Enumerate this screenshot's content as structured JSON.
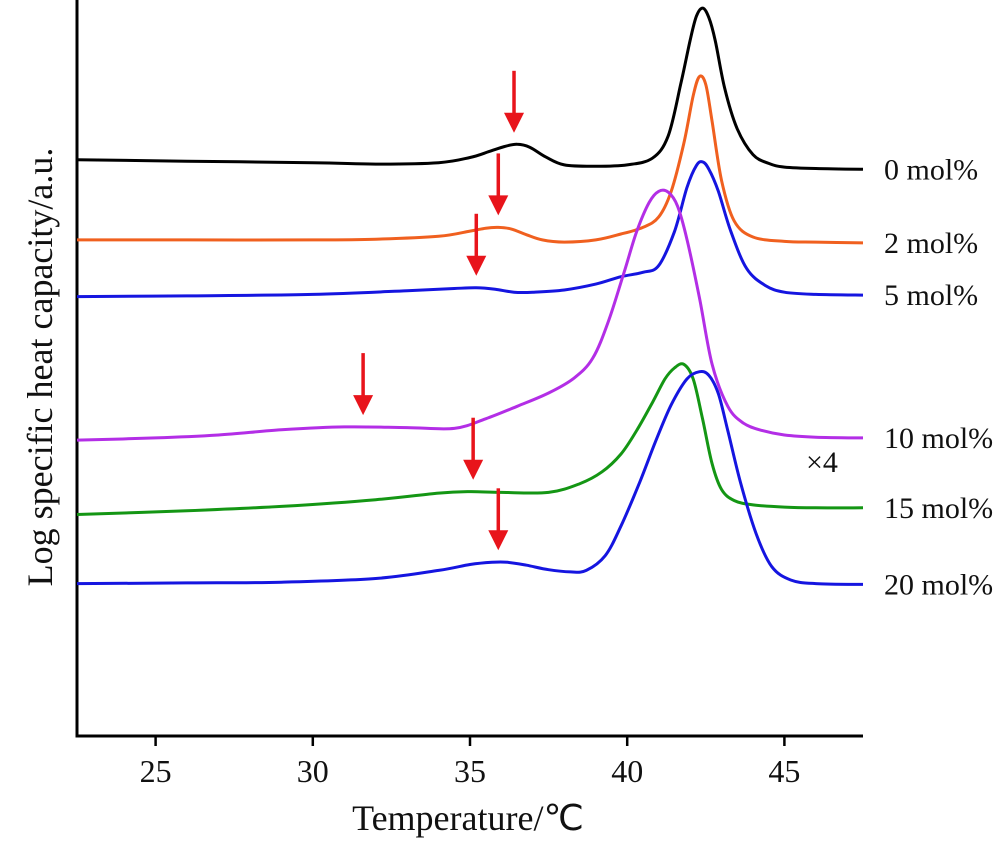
{
  "chart_data": {
    "type": "line",
    "xlabel": "Temperature/℃",
    "ylabel": "Log specific heat capacity/a.u.",
    "xlim": [
      22.5,
      47.5
    ],
    "ylim": [
      0,
      100
    ],
    "xticks": [
      25,
      30,
      35,
      40,
      45
    ],
    "xtick_labels": [
      "25",
      "30",
      "35",
      "40",
      "45"
    ],
    "yticks_shown": false,
    "grid": false,
    "legend": "none",
    "annotation": "×4",
    "series": [
      {
        "name": "0 mol%",
        "color": "#000000",
        "x": [
          22.5,
          26,
          30,
          32,
          34,
          35,
          35.6,
          36.1,
          36.5,
          36.9,
          37.4,
          38,
          39,
          40,
          40.8,
          41.3,
          41.7,
          42.0,
          42.2,
          42.4,
          42.6,
          42.8,
          43.1,
          43.5,
          44,
          44.5,
          45,
          46,
          47.5
        ],
        "y": [
          78.3,
          78.1,
          77.9,
          77.7,
          77.9,
          78.6,
          79.4,
          80.1,
          80.4,
          80.0,
          78.7,
          77.6,
          77.4,
          77.6,
          78.5,
          81.5,
          88.5,
          94.5,
          97.8,
          98.9,
          97.6,
          94.5,
          88.0,
          82.5,
          79.0,
          77.8,
          77.3,
          77.1,
          77.0
        ],
        "arrow_x": 36.4
      },
      {
        "name": "2 mol%",
        "color": "#f0601f",
        "x": [
          22.5,
          26,
          30,
          32,
          34,
          35,
          35.5,
          35.9,
          36.3,
          36.8,
          37.3,
          38,
          39,
          39.8,
          40.5,
          41.0,
          41.4,
          41.8,
          42.1,
          42.3,
          42.5,
          42.7,
          43.0,
          43.4,
          44,
          45,
          46,
          47.5
        ],
        "y": [
          67.4,
          67.4,
          67.4,
          67.5,
          67.9,
          68.6,
          69.0,
          69.1,
          68.9,
          68.1,
          67.4,
          67.1,
          67.4,
          68.2,
          69.1,
          70.5,
          74.0,
          80.5,
          87.0,
          89.6,
          88.5,
          83.5,
          75.5,
          70.0,
          67.8,
          67.2,
          67.1,
          67.0
        ],
        "arrow_x": 35.9
      },
      {
        "name": "5 mol%",
        "color": "#1515e0",
        "x": [
          22.5,
          26,
          30,
          33,
          34.5,
          35.2,
          35.8,
          36.4,
          37,
          38,
          39,
          39.8,
          40.5,
          41.0,
          41.5,
          41.9,
          42.2,
          42.4,
          42.6,
          42.9,
          43.3,
          43.8,
          44.4,
          45,
          46,
          47.5
        ],
        "y": [
          59.7,
          59.8,
          60.0,
          60.5,
          60.8,
          60.9,
          60.7,
          60.3,
          60.3,
          60.6,
          61.4,
          62.4,
          63.0,
          63.9,
          68.5,
          74.5,
          77.5,
          78.0,
          77.0,
          74.0,
          68.5,
          63.5,
          61.2,
          60.3,
          60.0,
          59.9
        ],
        "arrow_x": 35.2
      },
      {
        "name": "10 mol%",
        "color": "#b32ee6",
        "x": [
          22.5,
          25,
          27,
          29,
          31,
          33,
          34.5,
          35.5,
          36.5,
          37.5,
          38.3,
          38.9,
          39.4,
          39.9,
          40.3,
          40.7,
          41.0,
          41.3,
          41.6,
          41.9,
          42.3,
          42.7,
          43.2,
          43.7,
          44.3,
          45,
          46,
          47.5
        ],
        "y": [
          40.2,
          40.5,
          40.9,
          41.6,
          42.0,
          41.9,
          41.8,
          43.1,
          44.8,
          46.6,
          48.6,
          51.3,
          56.3,
          63.0,
          68.5,
          72.5,
          74.0,
          73.9,
          72.0,
          67.5,
          59.5,
          50.5,
          44.8,
          42.5,
          41.5,
          40.9,
          40.6,
          40.5
        ],
        "arrow_x": 31.6
      },
      {
        "name": "15 mol%",
        "color": "#149614",
        "x": [
          22.5,
          26,
          29,
          32,
          34,
          35,
          36,
          37.5,
          38.5,
          39.2,
          39.8,
          40.3,
          40.8,
          41.2,
          41.5,
          41.8,
          42.1,
          42.4,
          42.7,
          43.0,
          43.4,
          44,
          45,
          46,
          47.5
        ],
        "y": [
          30.1,
          30.6,
          31.2,
          32.1,
          33.0,
          33.2,
          33.1,
          33.1,
          34.3,
          35.9,
          38.3,
          41.5,
          45.3,
          48.5,
          50.0,
          50.5,
          48.5,
          43.0,
          37.0,
          33.5,
          32.0,
          31.4,
          31.1,
          31.0,
          31.0
        ],
        "arrow_x": 35.1
      },
      {
        "name": "20 mol%",
        "color": "#1515e0",
        "x": [
          22.5,
          26,
          29,
          32,
          34,
          35,
          35.7,
          36.2,
          36.8,
          37.5,
          38.2,
          38.7,
          39.3,
          39.8,
          40.4,
          40.9,
          41.4,
          41.9,
          42.3,
          42.6,
          42.9,
          43.2,
          43.6,
          44.1,
          44.6,
          45.2,
          46,
          47.5
        ],
        "y": [
          20.7,
          20.8,
          20.9,
          21.4,
          22.5,
          23.3,
          23.6,
          23.6,
          23.2,
          22.6,
          22.3,
          22.5,
          24.5,
          28.5,
          34.5,
          40.0,
          45.0,
          48.5,
          49.5,
          49.0,
          46.5,
          41.5,
          34.5,
          27.5,
          23.0,
          21.2,
          20.7,
          20.6
        ],
        "arrow_x": 35.9
      }
    ]
  }
}
